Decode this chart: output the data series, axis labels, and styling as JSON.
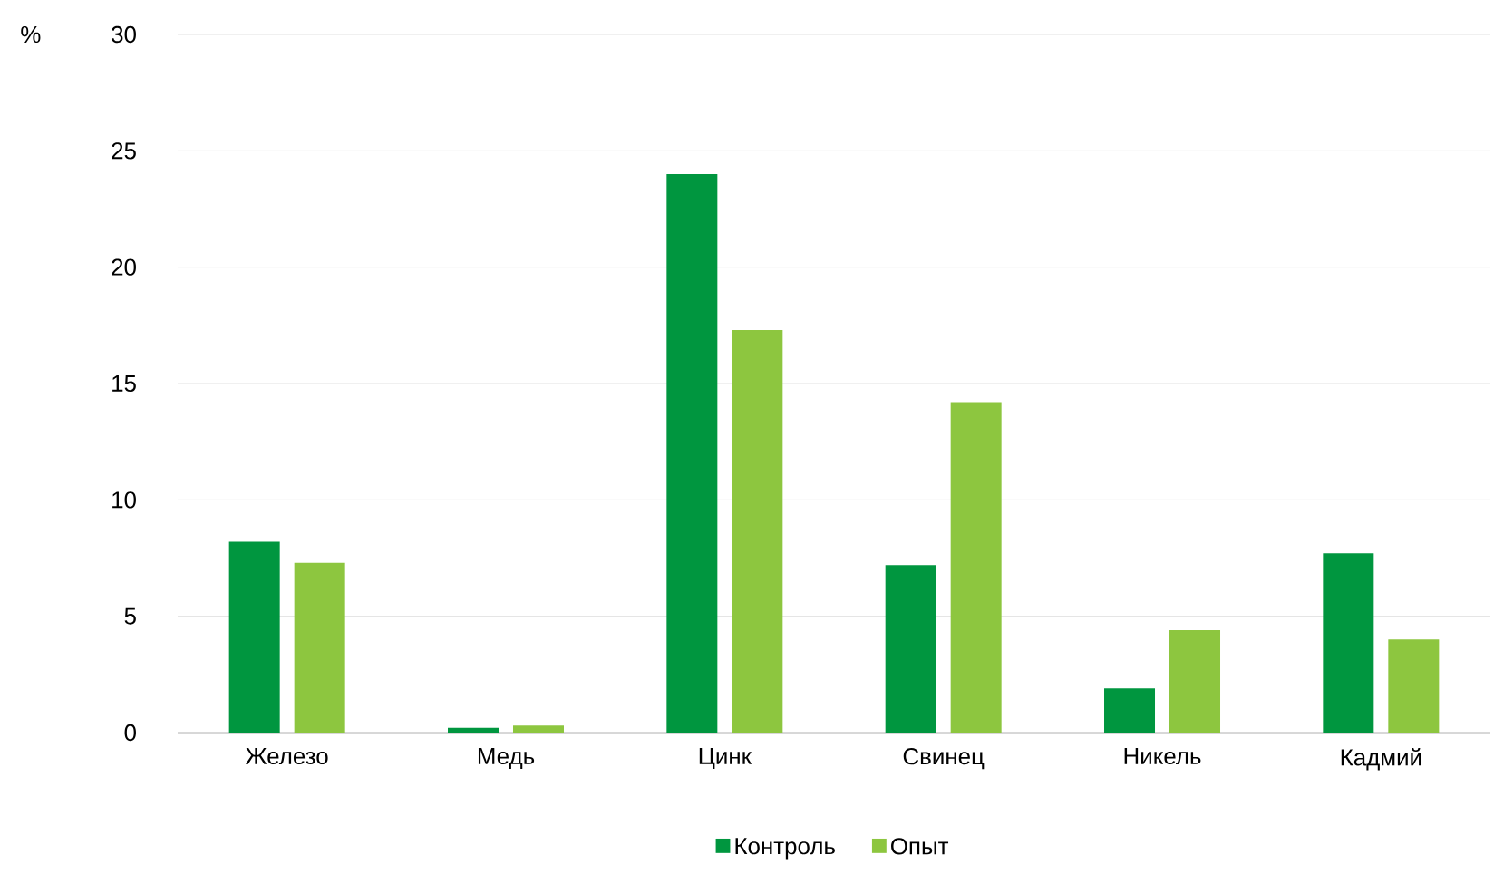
{
  "chart_data": {
    "type": "bar",
    "ylabel": "%",
    "categories": [
      "Железо",
      "Медь",
      "Цинк",
      "Свинец",
      "Никель",
      "Кадмий"
    ],
    "series": [
      {
        "name": "Контроль",
        "color": "#00963f",
        "values": [
          8.2,
          0.2,
          24.0,
          7.2,
          1.9,
          7.7
        ]
      },
      {
        "name": "Опыт",
        "color": "#8dc63f",
        "values": [
          7.3,
          0.3,
          17.3,
          14.2,
          4.4,
          4.0
        ]
      }
    ],
    "ylim": [
      0,
      30
    ],
    "yticks": [
      0,
      5,
      10,
      15,
      20,
      25,
      30
    ],
    "grid": "y",
    "legend": "bottom"
  }
}
